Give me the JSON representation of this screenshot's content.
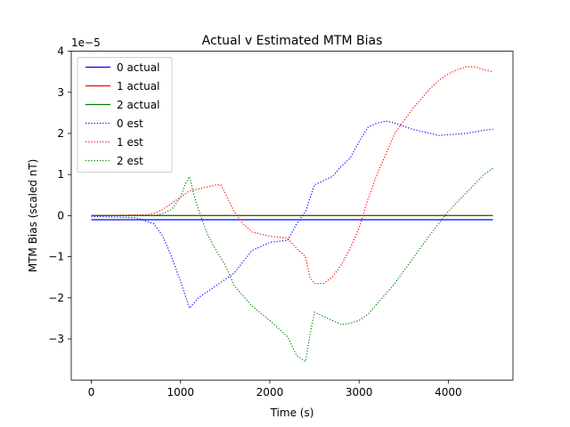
{
  "chart_data": {
    "type": "line",
    "title": "Actual v Estimated MTM Bias",
    "xlabel": "Time (s)",
    "ylabel": "MTM Bias (scaled nT)",
    "y_multiplier_label": "1e−5",
    "xlim": [
      -225,
      4725
    ],
    "ylim": [
      -4e-05,
      4e-05
    ],
    "xticks": [
      0,
      1000,
      2000,
      3000,
      4000
    ],
    "xtick_labels": [
      "0",
      "1000",
      "2000",
      "3000",
      "4000"
    ],
    "yticks": [
      -3e-05,
      -2e-05,
      -1e-05,
      0,
      1e-05,
      2e-05,
      3e-05,
      4e-05
    ],
    "ytick_labels": [
      "−3",
      "−2",
      "−1",
      "0",
      "1",
      "2",
      "3",
      "4"
    ],
    "grid": false,
    "legend_position": "upper-left",
    "series": [
      {
        "name": "0 actual",
        "color": "#0000ff",
        "style": "solid",
        "x": [
          0,
          4500
        ],
        "y": [
          -1e-06,
          -1e-06
        ]
      },
      {
        "name": "1 actual",
        "color": "#ff0000",
        "style": "solid",
        "x": [
          0,
          4500
        ],
        "y": [
          0.0,
          0.0
        ]
      },
      {
        "name": "2 actual",
        "color": "#008000",
        "style": "solid",
        "x": [
          0,
          4500
        ],
        "y": [
          0.0,
          0.0
        ]
      },
      {
        "name": "0 est",
        "color": "#0000ff",
        "style": "dotted",
        "x": [
          0,
          500,
          700,
          800,
          900,
          1000,
          1100,
          1200,
          1400,
          1600,
          1800,
          2000,
          2200,
          2300,
          2400,
          2500,
          2600,
          2700,
          2800,
          2900,
          3000,
          3100,
          3200,
          3300,
          3400,
          3600,
          3800,
          3900,
          4000,
          4200,
          4400,
          4500
        ],
        "y": [
          -2e-07,
          -5e-07,
          -2e-06,
          -5e-06,
          -1e-05,
          -1.6e-05,
          -2.25e-05,
          -2e-05,
          -1.7e-05,
          -1.4e-05,
          -8.5e-06,
          -6.5e-06,
          -6e-06,
          -2e-06,
          1e-06,
          7.5e-06,
          8.5e-06,
          9.5e-06,
          1.2e-05,
          1.4e-05,
          1.8e-05,
          2.15e-05,
          2.25e-05,
          2.3e-05,
          2.25e-05,
          2.1e-05,
          2e-05,
          1.95e-05,
          1.97e-05,
          2e-05,
          2.08e-05,
          2.1e-05
        ]
      },
      {
        "name": "1 est",
        "color": "#ff0000",
        "style": "dotted",
        "x": [
          0,
          600,
          700,
          800,
          900,
          1000,
          1100,
          1200,
          1300,
          1400,
          1450,
          1500,
          1600,
          1700,
          1800,
          1900,
          2000,
          2200,
          2300,
          2400,
          2450,
          2500,
          2600,
          2700,
          2800,
          2900,
          3000,
          3100,
          3200,
          3300,
          3400,
          3600,
          3800,
          3900,
          4000,
          4100,
          4200,
          4300,
          4400,
          4500
        ],
        "y": [
          0.0,
          2e-07,
          5e-07,
          1.5e-06,
          3e-06,
          4.5e-06,
          6e-06,
          6.5e-06,
          7e-06,
          7.5e-06,
          7.5e-06,
          5.5e-06,
          1e-06,
          -2e-06,
          -4e-06,
          -4.5e-06,
          -5e-06,
          -5.5e-06,
          -8e-06,
          -1e-05,
          -1.5e-05,
          -1.65e-05,
          -1.65e-05,
          -1.5e-05,
          -1.2e-05,
          -8e-06,
          -3e-06,
          4e-06,
          1e-05,
          1.5e-05,
          2e-05,
          2.6e-05,
          3.1e-05,
          3.3e-05,
          3.45e-05,
          3.55e-05,
          3.62e-05,
          3.62e-05,
          3.55e-05,
          3.5e-05
        ]
      },
      {
        "name": "2 est",
        "color": "#008000",
        "style": "dotted",
        "x": [
          0,
          700,
          800,
          900,
          1000,
          1050,
          1100,
          1150,
          1200,
          1300,
          1400,
          1500,
          1600,
          1800,
          2000,
          2200,
          2300,
          2400,
          2450,
          2500,
          2600,
          2700,
          2800,
          2900,
          3000,
          3100,
          3200,
          3400,
          3600,
          3800,
          4000,
          4200,
          4400,
          4500
        ],
        "y": [
          0.0,
          0.0,
          5e-07,
          1.5e-06,
          4.5e-06,
          7.5e-06,
          9.5e-06,
          5e-06,
          1.5e-06,
          -4.5e-06,
          -8.5e-06,
          -1.2e-05,
          -1.7e-05,
          -2.2e-05,
          -2.55e-05,
          -2.95e-05,
          -3.4e-05,
          -3.55e-05,
          -2.9e-05,
          -2.35e-05,
          -2.45e-05,
          -2.55e-05,
          -2.65e-05,
          -2.62e-05,
          -2.55e-05,
          -2.4e-05,
          -2.15e-05,
          -1.65e-05,
          -1.05e-05,
          -4.5e-06,
          1e-06,
          5.5e-06,
          1e-05,
          1.15e-05
        ]
      }
    ]
  }
}
